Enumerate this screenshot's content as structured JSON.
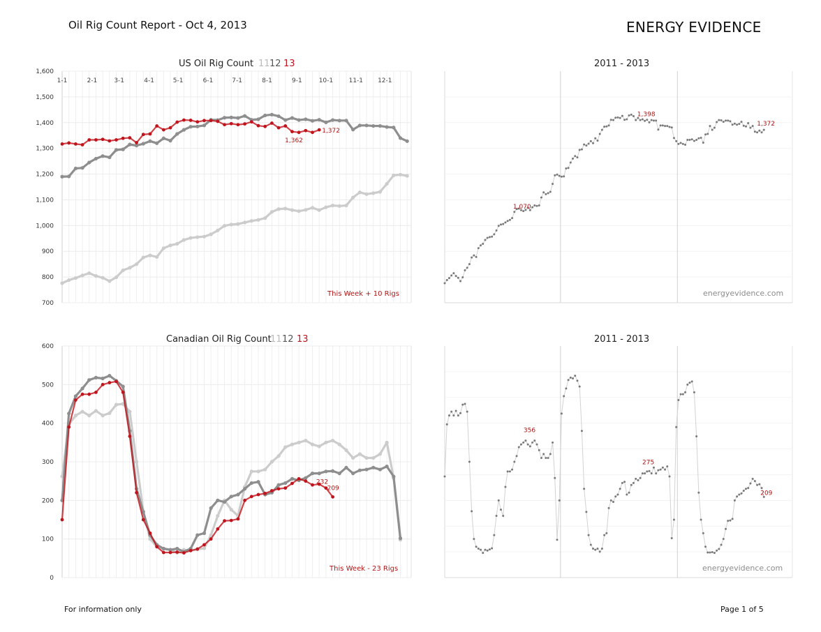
{
  "header": {
    "report_title": "Oil Rig Count Report  -  Oct 4, 2013",
    "brand": "ENERGY EVIDENCE"
  },
  "footer": {
    "left": "For information only",
    "page": "Page 1 of  5"
  },
  "colors": {
    "y2011": "#cccccc",
    "y2012": "#8e8e8e",
    "y2013": "#c0141c",
    "history": "#7a7a7a",
    "label": "#b01414"
  },
  "chart_data": [
    {
      "id": "us-weekly",
      "type": "line",
      "title": "US Oil Rig Count",
      "legend": [
        "11",
        "12",
        "13"
      ],
      "x_tick_labels": [
        "1-1",
        "2-1",
        "3-1",
        "4-1",
        "5-1",
        "6-1",
        "7-1",
        "8-1",
        "9-1",
        "10-1",
        "11-1",
        "12-1"
      ],
      "ylim": [
        700,
        1600
      ],
      "yticks": [
        "1,600",
        "1,500",
        "1,400",
        "1,300",
        "1,200",
        "1,100",
        "1,000",
        "900",
        "800",
        "700"
      ],
      "note": "This Week + 10 Rigs",
      "series": [
        {
          "name": "11",
          "values": [
            776,
            788,
            796,
            806,
            815,
            804,
            797,
            784,
            799,
            826,
            836,
            850,
            876,
            884,
            878,
            912,
            923,
            929,
            944,
            952,
            955,
            957,
            966,
            981,
            999,
            1004,
            1006,
            1012,
            1018,
            1022,
            1029,
            1053,
            1064,
            1066,
            1060,
            1056,
            1061,
            1069,
            1060,
            1071,
            1078,
            1076,
            1078,
            1109,
            1129,
            1122,
            1126,
            1131,
            1162,
            1195,
            1198,
            1193
          ]
        },
        {
          "name": "12",
          "values": [
            1190,
            1191,
            1222,
            1224,
            1245,
            1260,
            1270,
            1265,
            1294,
            1296,
            1315,
            1311,
            1318,
            1328,
            1320,
            1339,
            1330,
            1356,
            1372,
            1384,
            1385,
            1389,
            1411,
            1410,
            1419,
            1420,
            1418,
            1426,
            1411,
            1413,
            1428,
            1431,
            1425,
            1410,
            1418,
            1410,
            1413,
            1407,
            1411,
            1401,
            1410,
            1408,
            1408,
            1373,
            1389,
            1389,
            1387,
            1387,
            1383,
            1381,
            1340,
            1328
          ]
        },
        {
          "name": "13",
          "values": [
            1317,
            1321,
            1317,
            1314,
            1333,
            1333,
            1335,
            1329,
            1333,
            1339,
            1341,
            1322,
            1354,
            1356,
            1387,
            1372,
            1380,
            1402,
            1410,
            1409,
            1403,
            1408,
            1408,
            1405,
            1392,
            1396,
            1392,
            1395,
            1403,
            1388,
            1385,
            1398,
            1380,
            1387,
            1365,
            1362,
            1369,
            1362,
            1372
          ]
        }
      ],
      "data_labels": [
        {
          "text": "1,362"
        },
        {
          "text": "1,372"
        }
      ]
    },
    {
      "id": "us-history",
      "type": "line",
      "title": "2011 - 2013",
      "ylim": [
        700,
        1600
      ],
      "watermark": "energyevidence.com",
      "series": [
        {
          "name": "",
          "values": [
            776,
            788,
            796,
            806,
            815,
            804,
            797,
            784,
            799,
            826,
            836,
            850,
            876,
            884,
            878,
            912,
            923,
            929,
            944,
            952,
            955,
            957,
            966,
            981,
            999,
            1004,
            1006,
            1012,
            1018,
            1022,
            1029,
            1053,
            1064,
            1066,
            1060,
            1056,
            1061,
            1069,
            1060,
            1071,
            1078,
            1076,
            1078,
            1109,
            1129,
            1122,
            1126,
            1131,
            1162,
            1195,
            1198,
            1193,
            1190,
            1191,
            1222,
            1224,
            1245,
            1260,
            1270,
            1265,
            1294,
            1296,
            1315,
            1311,
            1318,
            1328,
            1320,
            1339,
            1330,
            1356,
            1372,
            1384,
            1385,
            1389,
            1411,
            1410,
            1419,
            1420,
            1418,
            1426,
            1411,
            1413,
            1428,
            1431,
            1425,
            1410,
            1418,
            1410,
            1413,
            1407,
            1411,
            1401,
            1410,
            1408,
            1408,
            1373,
            1389,
            1389,
            1387,
            1387,
            1383,
            1381,
            1340,
            1328,
            1317,
            1321,
            1317,
            1314,
            1333,
            1333,
            1335,
            1329,
            1333,
            1339,
            1341,
            1322,
            1354,
            1356,
            1387,
            1372,
            1380,
            1402,
            1410,
            1409,
            1403,
            1408,
            1408,
            1405,
            1392,
            1396,
            1392,
            1395,
            1403,
            1388,
            1385,
            1398,
            1380,
            1387,
            1365,
            1362,
            1369,
            1362,
            1372
          ]
        }
      ],
      "data_labels": [
        {
          "text": "1,070"
        },
        {
          "text": "1,398"
        },
        {
          "text": "1,372"
        }
      ]
    },
    {
      "id": "ca-weekly",
      "type": "line",
      "title": "Canadian Oil Rig Count",
      "legend": [
        "11",
        "12",
        "13"
      ],
      "ylim": [
        0,
        600
      ],
      "yticks": [
        "600",
        "500",
        "400",
        "300",
        "200",
        "100",
        "0"
      ],
      "note": "This Week - 23 Rigs",
      "series": [
        {
          "name": "11",
          "values": [
            262,
            397,
            420,
            430,
            420,
            432,
            420,
            426,
            448,
            450,
            430,
            300,
            172,
            100,
            80,
            75,
            72,
            64,
            72,
            70,
            73,
            76,
            110,
            160,
            200,
            176,
            160,
            235,
            275,
            275,
            280,
            300,
            315,
            338,
            345,
            350,
            355,
            345,
            340,
            350,
            355,
            345,
            330,
            310,
            320,
            310,
            310,
            320,
            350,
            258,
            98
          ]
        },
        {
          "name": "12",
          "values": [
            200,
            425,
            470,
            490,
            512,
            518,
            516,
            523,
            510,
            495,
            380,
            230,
            170,
            110,
            85,
            75,
            72,
            75,
            67,
            75,
            110,
            115,
            180,
            200,
            196,
            210,
            215,
            230,
            245,
            248,
            215,
            220,
            240,
            245,
            256,
            252,
            258,
            270,
            270,
            275,
            276,
            270,
            285,
            270,
            278,
            280,
            285,
            280,
            288,
            262,
            102
          ]
        },
        {
          "name": "13",
          "values": [
            150,
            390,
            460,
            475,
            475,
            480,
            500,
            505,
            508,
            480,
            366,
            220,
            150,
            115,
            80,
            65,
            65,
            66,
            64,
            70,
            74,
            85,
            100,
            126,
            147,
            148,
            152,
            200,
            210,
            215,
            218,
            225,
            230,
            232,
            244,
            256,
            250,
            240,
            242,
            232,
            209
          ]
        }
      ],
      "data_labels": [
        {
          "text": "232"
        },
        {
          "text": "209"
        }
      ]
    },
    {
      "id": "ca-history",
      "type": "line",
      "title": "2011 - 2013",
      "ylim": [
        0,
        600
      ],
      "watermark": "energyevidence.com",
      "series": [
        {
          "name": "",
          "values": [
            262,
            397,
            420,
            430,
            420,
            432,
            420,
            426,
            448,
            450,
            430,
            300,
            172,
            100,
            80,
            75,
            72,
            64,
            72,
            70,
            73,
            76,
            110,
            160,
            200,
            176,
            160,
            235,
            275,
            275,
            280,
            300,
            315,
            338,
            345,
            350,
            355,
            345,
            340,
            350,
            355,
            345,
            330,
            310,
            320,
            310,
            310,
            320,
            350,
            258,
            98,
            200,
            425,
            470,
            490,
            512,
            518,
            516,
            523,
            510,
            495,
            380,
            230,
            170,
            110,
            85,
            75,
            72,
            75,
            67,
            75,
            110,
            115,
            180,
            200,
            196,
            210,
            215,
            230,
            245,
            248,
            215,
            220,
            240,
            245,
            256,
            252,
            258,
            270,
            270,
            275,
            276,
            270,
            285,
            270,
            278,
            280,
            285,
            280,
            288,
            262,
            102,
            150,
            390,
            460,
            475,
            475,
            480,
            500,
            505,
            508,
            480,
            366,
            220,
            150,
            115,
            80,
            65,
            65,
            66,
            64,
            70,
            74,
            85,
            100,
            126,
            147,
            148,
            152,
            200,
            210,
            215,
            218,
            225,
            230,
            232,
            244,
            256,
            250,
            240,
            242,
            232,
            209
          ]
        }
      ],
      "data_labels": [
        {
          "text": "356"
        },
        {
          "text": "275"
        },
        {
          "text": "209"
        }
      ]
    }
  ]
}
